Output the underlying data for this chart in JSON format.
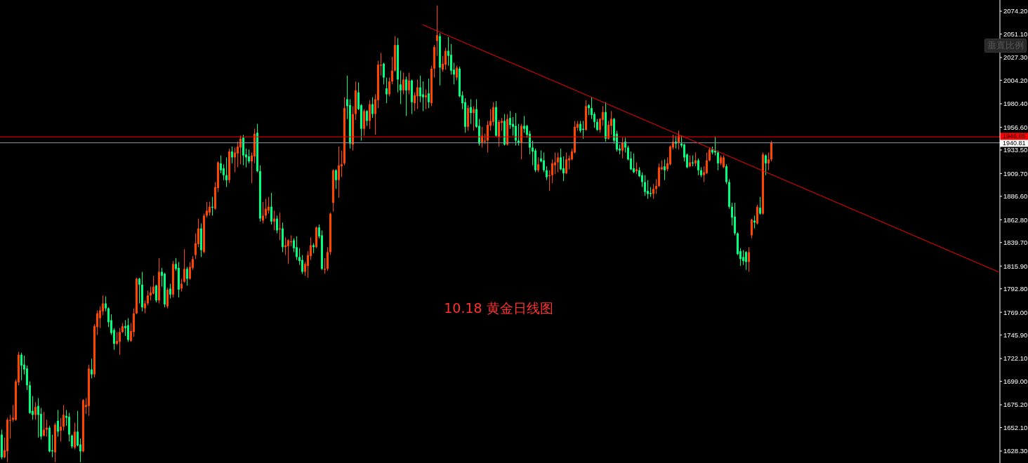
{
  "chart_data": {
    "type": "candlestick",
    "title": "10.18 黄金日线图",
    "annotations": [
      "垂直比例"
    ],
    "categories": [
      null,
      null,
      null,
      null,
      null,
      null,
      null,
      null,
      null,
      null,
      null,
      null,
      null,
      null,
      null,
      null,
      null,
      null,
      null,
      null,
      null,
      null,
      null,
      null,
      null,
      null,
      null,
      null,
      null,
      null,
      null,
      null,
      null,
      null,
      null,
      null,
      null,
      null,
      null,
      null,
      null,
      null,
      null,
      null,
      null,
      null,
      null,
      null,
      null,
      null,
      null,
      null,
      null,
      null,
      null,
      null,
      null,
      null,
      null,
      null,
      null,
      null,
      null,
      null,
      null,
      null,
      null,
      null,
      null,
      null,
      null,
      null,
      null,
      null,
      null,
      null,
      null,
      null,
      null,
      null,
      null,
      null,
      null,
      null,
      null,
      null,
      null,
      null,
      null,
      null,
      null,
      null,
      null,
      null,
      null,
      null,
      null,
      null,
      null,
      null,
      null,
      null,
      null,
      null,
      null,
      null,
      null,
      null,
      null,
      null,
      null,
      null,
      null,
      null,
      null,
      null,
      null,
      null,
      null,
      null,
      null,
      null,
      null,
      null,
      null,
      null,
      null,
      null,
      null,
      null,
      null,
      null,
      null,
      null,
      null,
      null,
      null,
      null,
      null,
      null,
      null,
      null,
      null,
      null,
      null,
      null,
      null,
      null,
      null,
      null,
      null,
      null,
      null,
      null,
      null,
      null,
      null,
      null,
      null,
      null,
      null,
      null,
      null,
      null,
      null,
      null,
      null,
      null,
      null,
      null,
      null,
      null,
      null,
      null,
      null,
      null,
      null,
      null,
      null,
      null,
      null,
      null,
      null,
      null,
      null,
      null,
      null,
      null,
      null,
      null,
      null,
      null,
      null,
      null,
      null,
      null,
      null,
      null,
      null,
      null,
      null,
      null,
      null,
      null,
      null,
      null,
      null,
      null,
      null,
      null,
      null,
      null,
      null,
      null,
      null,
      null,
      null,
      null,
      null,
      null,
      null,
      null,
      null,
      null,
      null,
      null,
      null,
      null,
      null,
      null,
      null,
      null,
      null,
      null,
      null,
      null,
      null,
      null,
      null,
      null,
      null,
      null,
      null,
      null,
      null,
      null,
      null,
      null,
      null,
      null,
      null,
      null,
      null,
      null,
      null,
      null,
      null,
      null,
      null,
      null,
      null,
      null,
      null,
      null,
      null,
      null,
      null,
      null,
      null,
      null,
      null,
      null,
      null,
      null,
      null,
      null,
      null,
      null,
      null,
      null,
      null,
      null,
      null,
      null,
      null,
      null,
      null,
      null,
      null,
      null,
      null,
      null,
      null,
      null,
      null,
      null,
      null,
      null,
      null,
      null,
      null,
      null,
      null,
      null,
      null,
      null,
      null,
      null,
      null,
      null,
      null,
      null,
      null,
      null,
      null,
      null,
      null,
      null,
      null,
      null,
      null,
      null,
      null,
      null,
      null,
      null,
      null,
      null,
      null,
      null,
      null,
      null,
      null,
      null,
      null,
      null,
      null,
      null,
      null,
      null,
      null,
      null,
      null,
      null,
      null,
      null,
      null,
      null,
      null,
      null,
      null,
      null,
      null,
      null,
      null,
      null
    ],
    "ohlc": [
      [
        1645,
        1650,
        1620,
        1622
      ],
      [
        1622,
        1642,
        1621,
        1629
      ],
      [
        1628,
        1662,
        1617,
        1660
      ],
      [
        1659,
        1665,
        1641,
        1660
      ],
      [
        1660,
        1675,
        1658,
        1662
      ],
      [
        1660,
        1701,
        1659,
        1699
      ],
      [
        1698,
        1729,
        1695,
        1726
      ],
      [
        1726,
        1728,
        1700,
        1715
      ],
      [
        1716,
        1725,
        1706,
        1711
      ],
      [
        1712,
        1715,
        1690,
        1695
      ],
      [
        1695,
        1699,
        1666,
        1667
      ],
      [
        1669,
        1684,
        1660,
        1665
      ],
      [
        1665,
        1678,
        1660,
        1673
      ],
      [
        1674,
        1682,
        1642,
        1665
      ],
      [
        1666,
        1672,
        1640,
        1643
      ],
      [
        1644,
        1668,
        1643,
        1650
      ],
      [
        1650,
        1660,
        1643,
        1652
      ],
      [
        1652,
        1654,
        1627,
        1628
      ],
      [
        1629,
        1645,
        1622,
        1628
      ],
      [
        1627,
        1657,
        1617,
        1655
      ],
      [
        1659,
        1670,
        1643,
        1648
      ],
      [
        1649,
        1662,
        1638,
        1653
      ],
      [
        1653,
        1675,
        1649,
        1665
      ],
      [
        1664,
        1670,
        1654,
        1662
      ],
      [
        1663,
        1667,
        1638,
        1645
      ],
      [
        1644,
        1645,
        1631,
        1633
      ],
      [
        1632,
        1657,
        1630,
        1648
      ],
      [
        1648,
        1669,
        1633,
        1634
      ],
      [
        1635,
        1641,
        1617,
        1628
      ],
      [
        1628,
        1681,
        1627,
        1680
      ],
      [
        1673,
        1682,
        1666,
        1675
      ],
      [
        1674,
        1716,
        1664,
        1712
      ],
      [
        1711,
        1722,
        1702,
        1706
      ],
      [
        1706,
        1757,
        1703,
        1755
      ],
      [
        1754,
        1771,
        1746,
        1768
      ],
      [
        1763,
        1775,
        1753,
        1771
      ],
      [
        1770,
        1786,
        1766,
        1778
      ],
      [
        1778,
        1785,
        1770,
        1773
      ],
      [
        1773,
        1774,
        1754,
        1759
      ],
      [
        1761,
        1767,
        1746,
        1748
      ],
      [
        1751,
        1753,
        1731,
        1737
      ],
      [
        1737,
        1749,
        1736,
        1740
      ],
      [
        1739,
        1753,
        1726,
        1749
      ],
      [
        1749,
        1758,
        1748,
        1755
      ],
      [
        1755,
        1761,
        1745,
        1753
      ],
      [
        1756,
        1763,
        1739,
        1741
      ],
      [
        1740,
        1758,
        1739,
        1750
      ],
      [
        1749,
        1773,
        1744,
        1768
      ],
      [
        1768,
        1804,
        1767,
        1803
      ],
      [
        1803,
        1804,
        1778,
        1797
      ],
      [
        1797,
        1810,
        1770,
        1774
      ],
      [
        1773,
        1781,
        1768,
        1778
      ],
      [
        1778,
        1791,
        1776,
        1786
      ],
      [
        1786,
        1795,
        1781,
        1789
      ],
      [
        1788,
        1806,
        1787,
        1795
      ],
      [
        1796,
        1797,
        1779,
        1781
      ],
      [
        1781,
        1824,
        1778,
        1810
      ],
      [
        1810,
        1814,
        1795,
        1806
      ],
      [
        1808,
        1809,
        1774,
        1777
      ],
      [
        1775,
        1794,
        1773,
        1792
      ],
      [
        1793,
        1798,
        1783,
        1787
      ],
      [
        1787,
        1821,
        1784,
        1818
      ],
      [
        1818,
        1824,
        1811,
        1813
      ],
      [
        1814,
        1820,
        1784,
        1792
      ],
      [
        1793,
        1803,
        1790,
        1798
      ],
      [
        1800,
        1833,
        1799,
        1813
      ],
      [
        1813,
        1815,
        1796,
        1803
      ],
      [
        1803,
        1820,
        1802,
        1815
      ],
      [
        1814,
        1826,
        1812,
        1823
      ],
      [
        1827,
        1849,
        1823,
        1839
      ],
      [
        1838,
        1864,
        1835,
        1854
      ],
      [
        1854,
        1859,
        1825,
        1832
      ],
      [
        1830,
        1869,
        1829,
        1867
      ],
      [
        1867,
        1881,
        1865,
        1872
      ],
      [
        1870,
        1881,
        1867,
        1876
      ],
      [
        1876,
        1886,
        1867,
        1875
      ],
      [
        1874,
        1901,
        1873,
        1896
      ],
      [
        1895,
        1922,
        1891,
        1921
      ],
      [
        1920,
        1928,
        1910,
        1913
      ],
      [
        1915,
        1919,
        1903,
        1908
      ],
      [
        1908,
        1926,
        1896,
        1903
      ],
      [
        1903,
        1935,
        1900,
        1932
      ],
      [
        1932,
        1937,
        1920,
        1926
      ],
      [
        1926,
        1936,
        1911,
        1931
      ],
      [
        1930,
        1942,
        1916,
        1937
      ],
      [
        1936,
        1948,
        1919,
        1945
      ],
      [
        1946,
        1949,
        1918,
        1928
      ],
      [
        1929,
        1935,
        1916,
        1926
      ],
      [
        1927,
        1934,
        1920,
        1922
      ],
      [
        1922,
        1931,
        1900,
        1928
      ],
      [
        1927,
        1955,
        1920,
        1950
      ],
      [
        1951,
        1960,
        1911,
        1912
      ],
      [
        1912,
        1918,
        1861,
        1864
      ],
      [
        1862,
        1881,
        1859,
        1867
      ],
      [
        1867,
        1884,
        1864,
        1874
      ],
      [
        1872,
        1886,
        1869,
        1876
      ],
      [
        1876,
        1890,
        1858,
        1861
      ],
      [
        1861,
        1872,
        1852,
        1864
      ],
      [
        1864,
        1867,
        1849,
        1852
      ],
      [
        1853,
        1870,
        1842,
        1854
      ],
      [
        1854,
        1860,
        1830,
        1835
      ],
      [
        1835,
        1845,
        1827,
        1837
      ],
      [
        1836,
        1843,
        1818,
        1842
      ],
      [
        1840,
        1847,
        1836,
        1841
      ],
      [
        1842,
        1844,
        1830,
        1834
      ],
      [
        1835,
        1846,
        1822,
        1825
      ],
      [
        1825,
        1834,
        1817,
        1821
      ],
      [
        1822,
        1827,
        1808,
        1810
      ],
      [
        1810,
        1820,
        1806,
        1818
      ],
      [
        1816,
        1831,
        1804,
        1827
      ],
      [
        1826,
        1845,
        1822,
        1837
      ],
      [
        1837,
        1839,
        1829,
        1835
      ],
      [
        1835,
        1856,
        1834,
        1855
      ],
      [
        1855,
        1858,
        1844,
        1846
      ],
      [
        1847,
        1852,
        1812,
        1813
      ],
      [
        1812,
        1824,
        1808,
        1813
      ],
      [
        1813,
        1835,
        1811,
        1830
      ],
      [
        1830,
        1870,
        1827,
        1869
      ],
      [
        1880,
        1914,
        1871,
        1913
      ],
      [
        1913,
        1914,
        1894,
        1903
      ],
      [
        1903,
        1937,
        1885,
        1918
      ],
      [
        1917,
        1933,
        1906,
        1919
      ],
      [
        1920,
        1987,
        1918,
        1976
      ],
      [
        1985,
        2009,
        1965,
        1978
      ],
      [
        1979,
        1985,
        1935,
        1940
      ],
      [
        1939,
        1978,
        1933,
        1970
      ],
      [
        1970,
        2003,
        1964,
        1994
      ],
      [
        1992,
        2002,
        1974,
        1975
      ],
      [
        1979,
        1980,
        1943,
        1955
      ],
      [
        1955,
        1975,
        1948,
        1973
      ],
      [
        1973,
        1974,
        1958,
        1963
      ],
      [
        1963,
        1984,
        1955,
        1980
      ],
      [
        1980,
        1987,
        1966,
        1970
      ],
      [
        1970,
        1990,
        1949,
        1985
      ],
      [
        1984,
        2024,
        1976,
        2020
      ],
      [
        2019,
        2032,
        2009,
        2020
      ],
      [
        2021,
        2022,
        2000,
        2007
      ],
      [
        1996,
        2007,
        1981,
        1990
      ],
      [
        1990,
        2007,
        1988,
        2003
      ],
      [
        2003,
        2028,
        2000,
        2014
      ],
      [
        2014,
        2049,
        2013,
        2040
      ],
      [
        2040,
        2047,
        1992,
        2005
      ],
      [
        2000,
        2014,
        1980,
        1994
      ],
      [
        1994,
        2012,
        1990,
        2005
      ],
      [
        2005,
        2008,
        1968,
        1994
      ],
      [
        1994,
        2012,
        1990,
        2004
      ],
      [
        2004,
        2005,
        1970,
        1982
      ],
      [
        1981,
        1992,
        1973,
        1989
      ],
      [
        1988,
        2005,
        1975,
        1997
      ],
      [
        1997,
        2009,
        1982,
        1988
      ],
      [
        1990,
        2003,
        1973,
        1987
      ],
      [
        1987,
        1995,
        1975,
        1989
      ],
      [
        1991,
        2006,
        1976,
        1982
      ],
      [
        1981,
        2019,
        1978,
        2016
      ],
      [
        2016,
        2040,
        2007,
        2038
      ],
      [
        2044,
        2080,
        2029,
        2050
      ],
      [
        2049,
        2052,
        1999,
        2017
      ],
      [
        2015,
        2029,
        2013,
        2021
      ],
      [
        2020,
        2037,
        2015,
        2034
      ],
      [
        2034,
        2048,
        2019,
        2029
      ],
      [
        2030,
        2041,
        2010,
        2014
      ],
      [
        2015,
        2022,
        2000,
        2010
      ],
      [
        2007,
        2019,
        2004,
        2017
      ],
      [
        2016,
        2018,
        1987,
        1988
      ],
      [
        1989,
        1993,
        1975,
        1981
      ],
      [
        1982,
        1986,
        1951,
        1957
      ],
      [
        1957,
        1979,
        1953,
        1976
      ],
      [
        1977,
        1985,
        1960,
        1971
      ],
      [
        1971,
        1978,
        1953,
        1975
      ],
      [
        1975,
        1985,
        1956,
        1957
      ],
      [
        1958,
        1965,
        1938,
        1940
      ],
      [
        1941,
        1957,
        1936,
        1948
      ],
      [
        1942,
        1950,
        1940,
        1943
      ],
      [
        1943,
        1963,
        1931,
        1959
      ],
      [
        1958,
        1975,
        1953,
        1963
      ],
      [
        1962,
        1982,
        1958,
        1977
      ],
      [
        1977,
        1983,
        1947,
        1948
      ],
      [
        1947,
        1964,
        1937,
        1962
      ],
      [
        1961,
        1966,
        1953,
        1963
      ],
      [
        1963,
        1970,
        1938,
        1939
      ],
      [
        1939,
        1970,
        1938,
        1965
      ],
      [
        1966,
        1973,
        1955,
        1959
      ],
      [
        1960,
        1967,
        1948,
        1957
      ],
      [
        1958,
        1971,
        1938,
        1943
      ],
      [
        1943,
        1960,
        1938,
        1941
      ],
      [
        1941,
        1960,
        1924,
        1958
      ],
      [
        1958,
        1968,
        1951,
        1955
      ],
      [
        1958,
        1959,
        1946,
        1949
      ],
      [
        1950,
        1953,
        1929,
        1936
      ],
      [
        1936,
        1943,
        1918,
        1932
      ],
      [
        1933,
        1935,
        1911,
        1913
      ],
      [
        1913,
        1926,
        1911,
        1919
      ],
      [
        1925,
        1933,
        1921,
        1922
      ],
      [
        1923,
        1931,
        1911,
        1913
      ],
      [
        1913,
        1917,
        1903,
        1906
      ],
      [
        1907,
        1913,
        1892,
        1908
      ],
      [
        1908,
        1924,
        1900,
        1920
      ],
      [
        1918,
        1931,
        1909,
        1921
      ],
      [
        1921,
        1931,
        1911,
        1926
      ],
      [
        1926,
        1935,
        1913,
        1914
      ],
      [
        1915,
        1927,
        1902,
        1910
      ],
      [
        1910,
        1931,
        1909,
        1924
      ],
      [
        1923,
        1928,
        1914,
        1925
      ],
      [
        1924,
        1935,
        1923,
        1932
      ],
      [
        1931,
        1963,
        1930,
        1957
      ],
      [
        1956,
        1963,
        1953,
        1960
      ],
      [
        1960,
        1963,
        1951,
        1953
      ],
      [
        1955,
        1963,
        1945,
        1954
      ],
      [
        1954,
        1984,
        1953,
        1978
      ],
      [
        1979,
        1980,
        1969,
        1976
      ],
      [
        1976,
        1987,
        1965,
        1969
      ],
      [
        1970,
        1972,
        1956,
        1962
      ],
      [
        1962,
        1965,
        1953,
        1954
      ],
      [
        1954,
        1966,
        1951,
        1965
      ],
      [
        1964,
        1978,
        1958,
        1972
      ],
      [
        1972,
        1982,
        1942,
        1945
      ],
      [
        1945,
        1963,
        1944,
        1959
      ],
      [
        1958,
        1973,
        1949,
        1965
      ],
      [
        1965,
        1966,
        1940,
        1943
      ],
      [
        1950,
        1953,
        1932,
        1934
      ],
      [
        1935,
        1939,
        1929,
        1933
      ],
      [
        1933,
        1946,
        1925,
        1941
      ],
      [
        1942,
        1946,
        1931,
        1936
      ],
      [
        1936,
        1938,
        1923,
        1924
      ],
      [
        1925,
        1932,
        1913,
        1914
      ],
      [
        1915,
        1930,
        1910,
        1911
      ],
      [
        1912,
        1921,
        1909,
        1914
      ],
      [
        1913,
        1916,
        1906,
        1907
      ],
      [
        1908,
        1911,
        1896,
        1901
      ],
      [
        1901,
        1908,
        1887,
        1891
      ],
      [
        1892,
        1903,
        1884,
        1889
      ],
      [
        1890,
        1896,
        1886,
        1889
      ],
      [
        1889,
        1899,
        1884,
        1894
      ],
      [
        1894,
        1904,
        1889,
        1897
      ],
      [
        1897,
        1920,
        1896,
        1916
      ],
      [
        1914,
        1923,
        1913,
        1916
      ],
      [
        1917,
        1924,
        1903,
        1913
      ],
      [
        1914,
        1926,
        1912,
        1920
      ],
      [
        1919,
        1938,
        1918,
        1937
      ],
      [
        1936,
        1949,
        1934,
        1942
      ],
      [
        1942,
        1948,
        1935,
        1940
      ],
      [
        1941,
        1953,
        1934,
        1948
      ],
      [
        1940,
        1948,
        1936,
        1938
      ],
      [
        1939,
        1940,
        1922,
        1926
      ],
      [
        1929,
        1930,
        1915,
        1916
      ],
      [
        1917,
        1928,
        1916,
        1921
      ],
      [
        1921,
        1928,
        1917,
        1920
      ],
      [
        1920,
        1931,
        1917,
        1923
      ],
      [
        1923,
        1925,
        1908,
        1913
      ],
      [
        1913,
        1916,
        1906,
        1908
      ],
      [
        1908,
        1917,
        1901,
        1911
      ],
      [
        1910,
        1931,
        1909,
        1923
      ],
      [
        1923,
        1936,
        1922,
        1934
      ],
      [
        1934,
        1937,
        1929,
        1931
      ],
      [
        1933,
        1947,
        1928,
        1931
      ],
      [
        1931,
        1933,
        1913,
        1920
      ],
      [
        1920,
        1928,
        1918,
        1926
      ],
      [
        1916,
        1928,
        1915,
        1926
      ],
      [
        1917,
        1919,
        1899,
        1901
      ],
      [
        1901,
        1904,
        1874,
        1876
      ],
      [
        1876,
        1880,
        1857,
        1865
      ],
      [
        1866,
        1880,
        1847,
        1849
      ],
      [
        1849,
        1850,
        1827,
        1828
      ],
      [
        1831,
        1834,
        1816,
        1823
      ],
      [
        1825,
        1832,
        1817,
        1821
      ],
      [
        1830,
        1831,
        1812,
        1820
      ],
      [
        1820,
        1835,
        1810,
        1830
      ],
      [
        1847,
        1864,
        1844,
        1863
      ],
      [
        1862,
        1867,
        1854,
        1860
      ],
      [
        1859,
        1878,
        1858,
        1876
      ],
      [
        1875,
        1886,
        1868,
        1869
      ],
      [
        1869,
        1931,
        1868,
        1929
      ],
      [
        1928,
        1929,
        1908,
        1920
      ],
      [
        1920,
        1931,
        1913,
        1924
      ],
      [
        1924,
        1943,
        1922,
        1940.81
      ],
      null,
      null,
      null,
      null,
      null,
      null,
      null,
      null,
      null,
      null,
      null,
      null,
      null,
      null,
      null,
      null,
      null,
      null,
      null,
      null,
      null,
      null,
      null,
      null,
      null,
      null,
      null,
      null,
      null,
      null,
      null,
      null,
      null,
      null,
      null,
      null,
      null,
      null,
      null,
      null,
      null,
      null,
      null,
      null,
      null,
      null,
      null,
      null,
      null,
      null,
      null,
      null,
      null,
      null,
      null,
      null,
      null,
      null,
      null,
      null,
      null,
      null,
      null,
      null,
      null,
      null,
      null,
      null,
      null,
      null,
      null,
      null,
      null,
      null,
      null,
      null,
      null,
      null,
      null,
      null,
      null
    ],
    "colors": [
      "#00ff7f",
      "#ff4500",
      "#ff4500",
      "#ff4500",
      "#ff4500",
      "#ff4500",
      "#ff4500",
      "#00ff7f",
      "#00ff7f",
      "#00ff7f",
      "#00ff7f",
      "#00ff7f",
      "#ff4500",
      "#00ff7f",
      "#00ff7f",
      "#ff4500",
      "#ff4500",
      "#00ff7f",
      "#00ff7f",
      "#ff4500",
      "#00ff7f",
      "#ff4500",
      "#ff4500",
      "#00ff7f",
      "#00ff7f",
      "#00ff7f",
      "#ff4500",
      "#00ff7f",
      "#00ff7f",
      "#ff4500",
      "#ff4500",
      "#ff4500",
      "#00ff7f",
      "#ff4500",
      "#ff4500",
      "#ff4500",
      "#ff4500",
      "#00ff7f",
      "#00ff7f",
      "#00ff7f",
      "#00ff7f",
      "#ff4500",
      "#ff4500",
      "#ff4500",
      "#00ff7f",
      "#00ff7f",
      "#ff4500",
      "#ff4500",
      "#ff4500",
      "#00ff7f",
      "#00ff7f",
      "#ff4500",
      "#ff4500",
      "#ff4500",
      "#ff4500",
      "#00ff7f",
      "#ff4500",
      "#00ff7f",
      "#00ff7f",
      "#ff4500",
      "#00ff7f",
      "#ff4500",
      "#00ff7f",
      "#00ff7f",
      "#ff4500",
      "#ff4500",
      "#00ff7f",
      "#ff4500",
      "#ff4500",
      "#ff4500",
      "#ff4500",
      "#00ff7f",
      "#ff4500",
      "#ff4500",
      "#ff4500",
      "#00ff7f",
      "#ff4500",
      "#ff4500",
      "#00ff7f",
      "#00ff7f",
      "#00ff7f",
      "#ff4500",
      "#00ff7f",
      "#ff4500",
      "#ff4500",
      "#ff4500",
      "#00ff7f",
      "#00ff7f",
      "#00ff7f",
      "#ff4500",
      "#ff4500",
      "#00ff7f",
      "#00ff7f",
      "#ff4500",
      "#ff4500",
      "#ff4500",
      "#00ff7f",
      "#ff4500",
      "#00ff7f",
      "#ff4500",
      "#00ff7f",
      "#ff4500",
      "#ff4500",
      "#ff4500",
      "#00ff7f",
      "#00ff7f",
      "#00ff7f",
      "#00ff7f",
      "#ff4500",
      "#ff4500",
      "#ff4500",
      "#00ff7f",
      "#ff4500",
      "#00ff7f",
      "#00ff7f",
      "#ff4500",
      "#ff4500",
      "#ff4500",
      "#ff4500",
      "#00ff7f",
      "#ff4500",
      "#ff4500",
      "#ff4500",
      "#00ff7f",
      "#00ff7f",
      "#ff4500",
      "#ff4500",
      "#00ff7f",
      "#00ff7f",
      "#ff4500",
      "#00ff7f",
      "#ff4500",
      "#00ff7f",
      "#ff4500",
      "#ff4500",
      "#ff4500",
      "#00ff7f",
      "#00ff7f",
      "#ff4500",
      "#ff4500",
      "#ff4500",
      "#00ff7f",
      "#00ff7f",
      "#ff4500",
      "#00ff7f",
      "#ff4500",
      "#00ff7f",
      "#ff4500",
      "#ff4500",
      "#00ff7f",
      "#00ff7f",
      "#ff4500",
      "#00ff7f",
      "#ff4500",
      "#ff4500",
      "#ff4500",
      "#00ff7f",
      "#ff4500",
      "#ff4500",
      "#00ff7f",
      "#00ff7f",
      "#00ff7f",
      "#ff4500",
      "#00ff7f",
      "#00ff7f",
      "#00ff7f",
      "#ff4500",
      "#00ff7f",
      "#ff4500",
      "#00ff7f",
      "#00ff7f",
      "#ff4500",
      "#ff4500",
      "#ff4500",
      "#ff4500",
      "#ff4500",
      "#00ff7f",
      "#ff4500",
      "#ff4500",
      "#00ff7f",
      "#ff4500",
      "#00ff7f",
      "#00ff7f",
      "#00ff7f",
      "#00ff7f",
      "#ff4500",
      "#00ff7f",
      "#00ff7f",
      "#00ff7f",
      "#00ff7f",
      "#00ff7f",
      "#ff4500",
      "#00ff7f",
      "#00ff7f",
      "#00ff7f",
      "#ff4500",
      "#ff4500",
      "#ff4500",
      "#ff4500",
      "#00ff7f",
      "#00ff7f",
      "#ff4500",
      "#ff4500",
      "#ff4500",
      "#ff4500",
      "#ff4500",
      "#00ff7f",
      "#00ff7f",
      "#ff4500",
      "#00ff7f",
      "#00ff7f",
      "#00ff7f",
      "#00ff7f",
      "#ff4500",
      "#ff4500",
      "#00ff7f",
      "#ff4500",
      "#ff4500",
      "#00ff7f",
      "#00ff7f",
      "#00ff7f",
      "#ff4500",
      "#00ff7f",
      "#00ff7f",
      "#00ff7f",
      "#00ff7f",
      "#ff4500",
      "#00ff7f",
      "#00ff7f",
      "#00ff7f",
      "#00ff7f",
      "#00ff7f",
      "#ff4500",
      "#ff4500",
      "#ff4500",
      "#ff4500",
      "#00ff7f",
      "#ff4500",
      "#ff4500",
      "#ff4500",
      "#00ff7f",
      "#ff4500",
      "#00ff7f",
      "#00ff7f",
      "#00ff7f",
      "#ff4500",
      "#00ff7f",
      "#ff4500",
      "#00ff7f",
      "#00ff7f",
      "#ff4500",
      "#ff4500",
      "#ff4500",
      "#00ff7f",
      "#00ff7f",
      "#00ff7f",
      "#ff4500",
      "#ff4500",
      "#00ff7f",
      "#00ff7f",
      "#00ff7f",
      "#00ff7f",
      "#00ff7f",
      "#00ff7f",
      "#00ff7f",
      "#00ff7f",
      "#ff4500",
      "#ff4500",
      "#00ff7f",
      "#ff4500",
      "#00ff7f",
      "#ff4500",
      "#00ff7f",
      "#ff4500",
      "#ff4500",
      null,
      null,
      null,
      null,
      null,
      null,
      null,
      null,
      null,
      null,
      null,
      null,
      null,
      null,
      null,
      null,
      null,
      null,
      null,
      null,
      null,
      null,
      null,
      null,
      null,
      null,
      null,
      null,
      null,
      null,
      null,
      null,
      null,
      null,
      null,
      null,
      null,
      null,
      null,
      null,
      null,
      null,
      null,
      null,
      null,
      null,
      null,
      null,
      null,
      null,
      null,
      null,
      null,
      null,
      null,
      null,
      null,
      null,
      null,
      null,
      null,
      null,
      null,
      null,
      null,
      null,
      null,
      null,
      null,
      null,
      null,
      null,
      null,
      null,
      null,
      null,
      null,
      null,
      null,
      null,
      null
    ],
    "series": [
      {
        "type": "line",
        "color": "#ff0000",
        "values": [
          null,
          null,
          null,
          null,
          null,
          null,
          null,
          null,
          null,
          null,
          null,
          null,
          null,
          null,
          null,
          null,
          null,
          null,
          null,
          null,
          null,
          null,
          null,
          null,
          null,
          null,
          null,
          null,
          null,
          null,
          null,
          null,
          null,
          null,
          null,
          null,
          null,
          null,
          null,
          null,
          null,
          null,
          null,
          null,
          null,
          null,
          null,
          null,
          null,
          null,
          null,
          null,
          null,
          null,
          null,
          null,
          null,
          null,
          null,
          null,
          null,
          null,
          null,
          null,
          null,
          null,
          null,
          null,
          null,
          null,
          null,
          null,
          null,
          null,
          null,
          null,
          null,
          null,
          null,
          null,
          null,
          null,
          null,
          null,
          null,
          null,
          null,
          null,
          null,
          null,
          null,
          null,
          null,
          null,
          null,
          null,
          null,
          null,
          null,
          null,
          null,
          null,
          null,
          null,
          null,
          null,
          null,
          null,
          null,
          null,
          null,
          null,
          null,
          null,
          null,
          null,
          null,
          null,
          null,
          null,
          null,
          null,
          null,
          null,
          null,
          null,
          null,
          null,
          null,
          null,
          null,
          null,
          null,
          null,
          null,
          null,
          null,
          null,
          null,
          null,
          null,
          null,
          null,
          null,
          null,
          null,
          null,
          null,
          null,
          null,
          2060.5,
          null,
          null,
          null,
          null,
          null,
          null,
          null,
          null,
          null,
          null,
          null,
          null,
          null,
          null,
          null,
          null,
          null,
          null,
          null,
          null,
          null,
          null,
          null,
          null,
          null,
          null,
          null,
          null,
          null,
          null,
          null,
          null,
          null,
          null,
          null,
          null,
          null,
          null,
          null,
          null,
          null,
          null,
          null,
          null,
          null,
          null,
          null,
          null,
          null,
          null,
          null,
          null,
          null,
          null,
          null,
          null,
          null,
          null,
          null,
          null,
          null,
          null,
          null,
          null,
          null,
          null,
          null,
          null,
          null,
          null,
          null,
          null,
          null,
          null,
          null,
          null,
          null,
          null,
          null,
          null,
          null,
          null,
          null,
          null,
          null,
          null,
          null,
          null,
          null,
          null,
          null,
          null,
          null,
          null,
          null,
          null,
          null,
          null,
          null,
          null,
          null,
          null,
          null,
          null,
          null,
          null,
          null,
          null,
          null,
          null,
          null,
          null,
          null,
          null,
          null,
          null,
          null,
          null,
          null,
          null,
          null,
          null,
          null,
          null,
          null,
          null,
          null,
          null,
          null,
          null,
          null,
          null,
          null,
          null,
          null,
          null,
          null,
          null,
          null,
          null,
          null,
          null,
          null,
          null,
          null,
          null,
          null,
          null,
          null,
          null,
          null,
          null,
          null,
          null,
          null,
          null,
          null,
          null,
          null,
          null,
          null,
          null,
          null,
          null,
          null,
          null,
          null,
          null,
          null,
          null,
          null,
          null,
          null,
          null,
          null,
          null,
          null,
          null,
          null,
          null,
          null,
          null,
          null,
          null,
          null,
          null,
          null,
          null,
          null,
          null,
          null,
          null,
          null,
          null,
          null,
          null,
          null,
          null,
          null,
          null,
          null,
          null,
          null,
          null,
          1809.9
        ]
      }
    ],
    "ylim": [
      1616.2,
      2085.6
    ],
    "yticks": [
      {
        "value": 1628.3,
        "label": "1628.30"
      },
      {
        "value": 1652.1,
        "label": "1652.10"
      },
      {
        "value": 1675.2,
        "label": "1675.20"
      },
      {
        "value": 1699.0,
        "label": "1699.00"
      },
      {
        "value": 1722.1,
        "label": "1722.10"
      },
      {
        "value": 1745.9,
        "label": "1745.90"
      },
      {
        "value": 1769.0,
        "label": "1769.00"
      },
      {
        "value": 1792.8,
        "label": "1792.80"
      },
      {
        "value": 1815.9,
        "label": "1815.90"
      },
      {
        "value": 1839.7,
        "label": "1839.70"
      },
      {
        "value": 1862.8,
        "label": "1862.80"
      },
      {
        "value": 1886.6,
        "label": "1886.60"
      },
      {
        "value": 1909.7,
        "label": "1909.70"
      },
      {
        "value": 1933.5,
        "label": "1933.50"
      },
      {
        "value": 1956.6,
        "label": "1956.60"
      },
      {
        "value": 1980.4,
        "label": "1980.40"
      },
      {
        "value": 2004.2,
        "label": "2004.20"
      },
      {
        "value": 2027.3,
        "label": "2027.30"
      },
      {
        "value": 2051.1,
        "label": "2051.10"
      },
      {
        "value": 2074.2,
        "label": "2074.20"
      }
    ],
    "ref_lines": [
      {
        "axis": "y",
        "value": 1946.85,
        "label": "1946.85",
        "color": "#ff0000"
      },
      {
        "axis": "y",
        "value": 1940.81,
        "label": "1940.81",
        "color": "#8c96a5"
      }
    ],
    "tick_labels": "y"
  }
}
